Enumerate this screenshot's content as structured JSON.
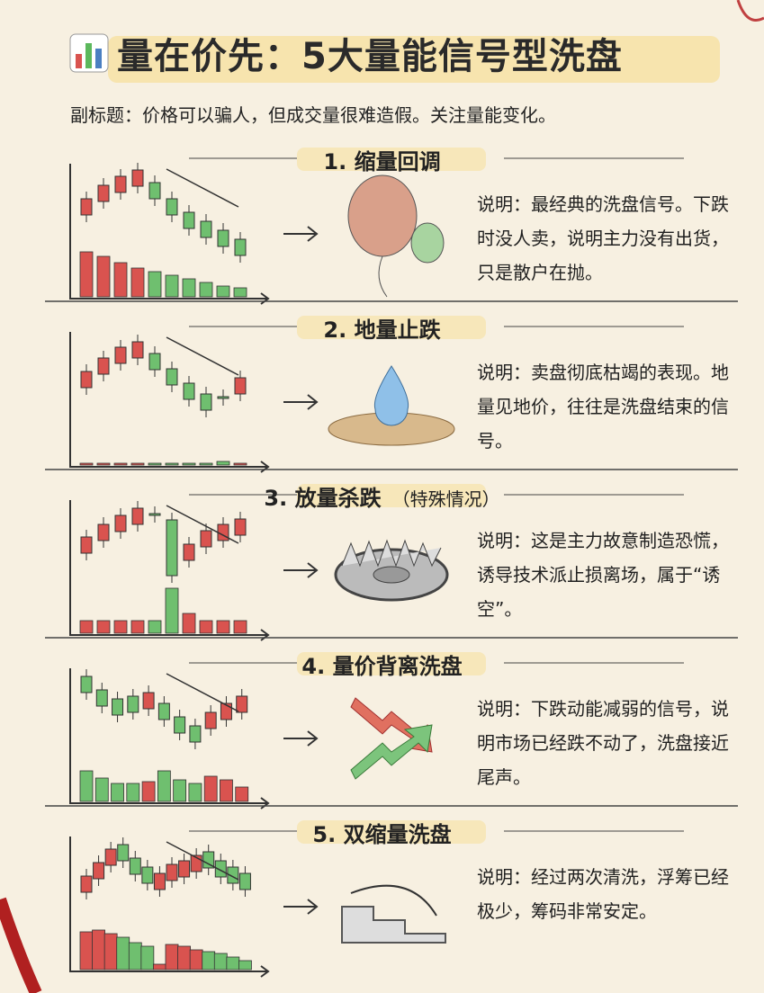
{
  "header": {
    "title": "量在价先：5大量能信号型洗盘",
    "subtitle": "副标题：价格可以骗人，但成交量很难造假。关注量能变化。"
  },
  "sections": [
    {
      "heading": "1. 缩量回调",
      "description": "说明：最经典的洗盘信号。下跌时没人卖，说明主力没有出货，只是散户在抛。"
    },
    {
      "heading": "2. 地量止跌",
      "description": "说明：卖盘彻底枯竭的表现。地量见地价，往往是洗盘结束的信号。"
    },
    {
      "heading": "3. 放量杀跌",
      "note": "（特殊情况）",
      "description": "说明：这是主力故意制造恐慌，诱导技术派止损离场，属于“诱空”。"
    },
    {
      "heading": "4. 量价背离洗盘",
      "description": "说明：下跌动能减弱的信号，说明市场已经跌不动了，洗盘接近尾声。"
    },
    {
      "heading": "5. 双缩量洗盘",
      "description": "说明：经过两次清洗，浮筹已经极少，筹码非常安定。"
    }
  ]
}
